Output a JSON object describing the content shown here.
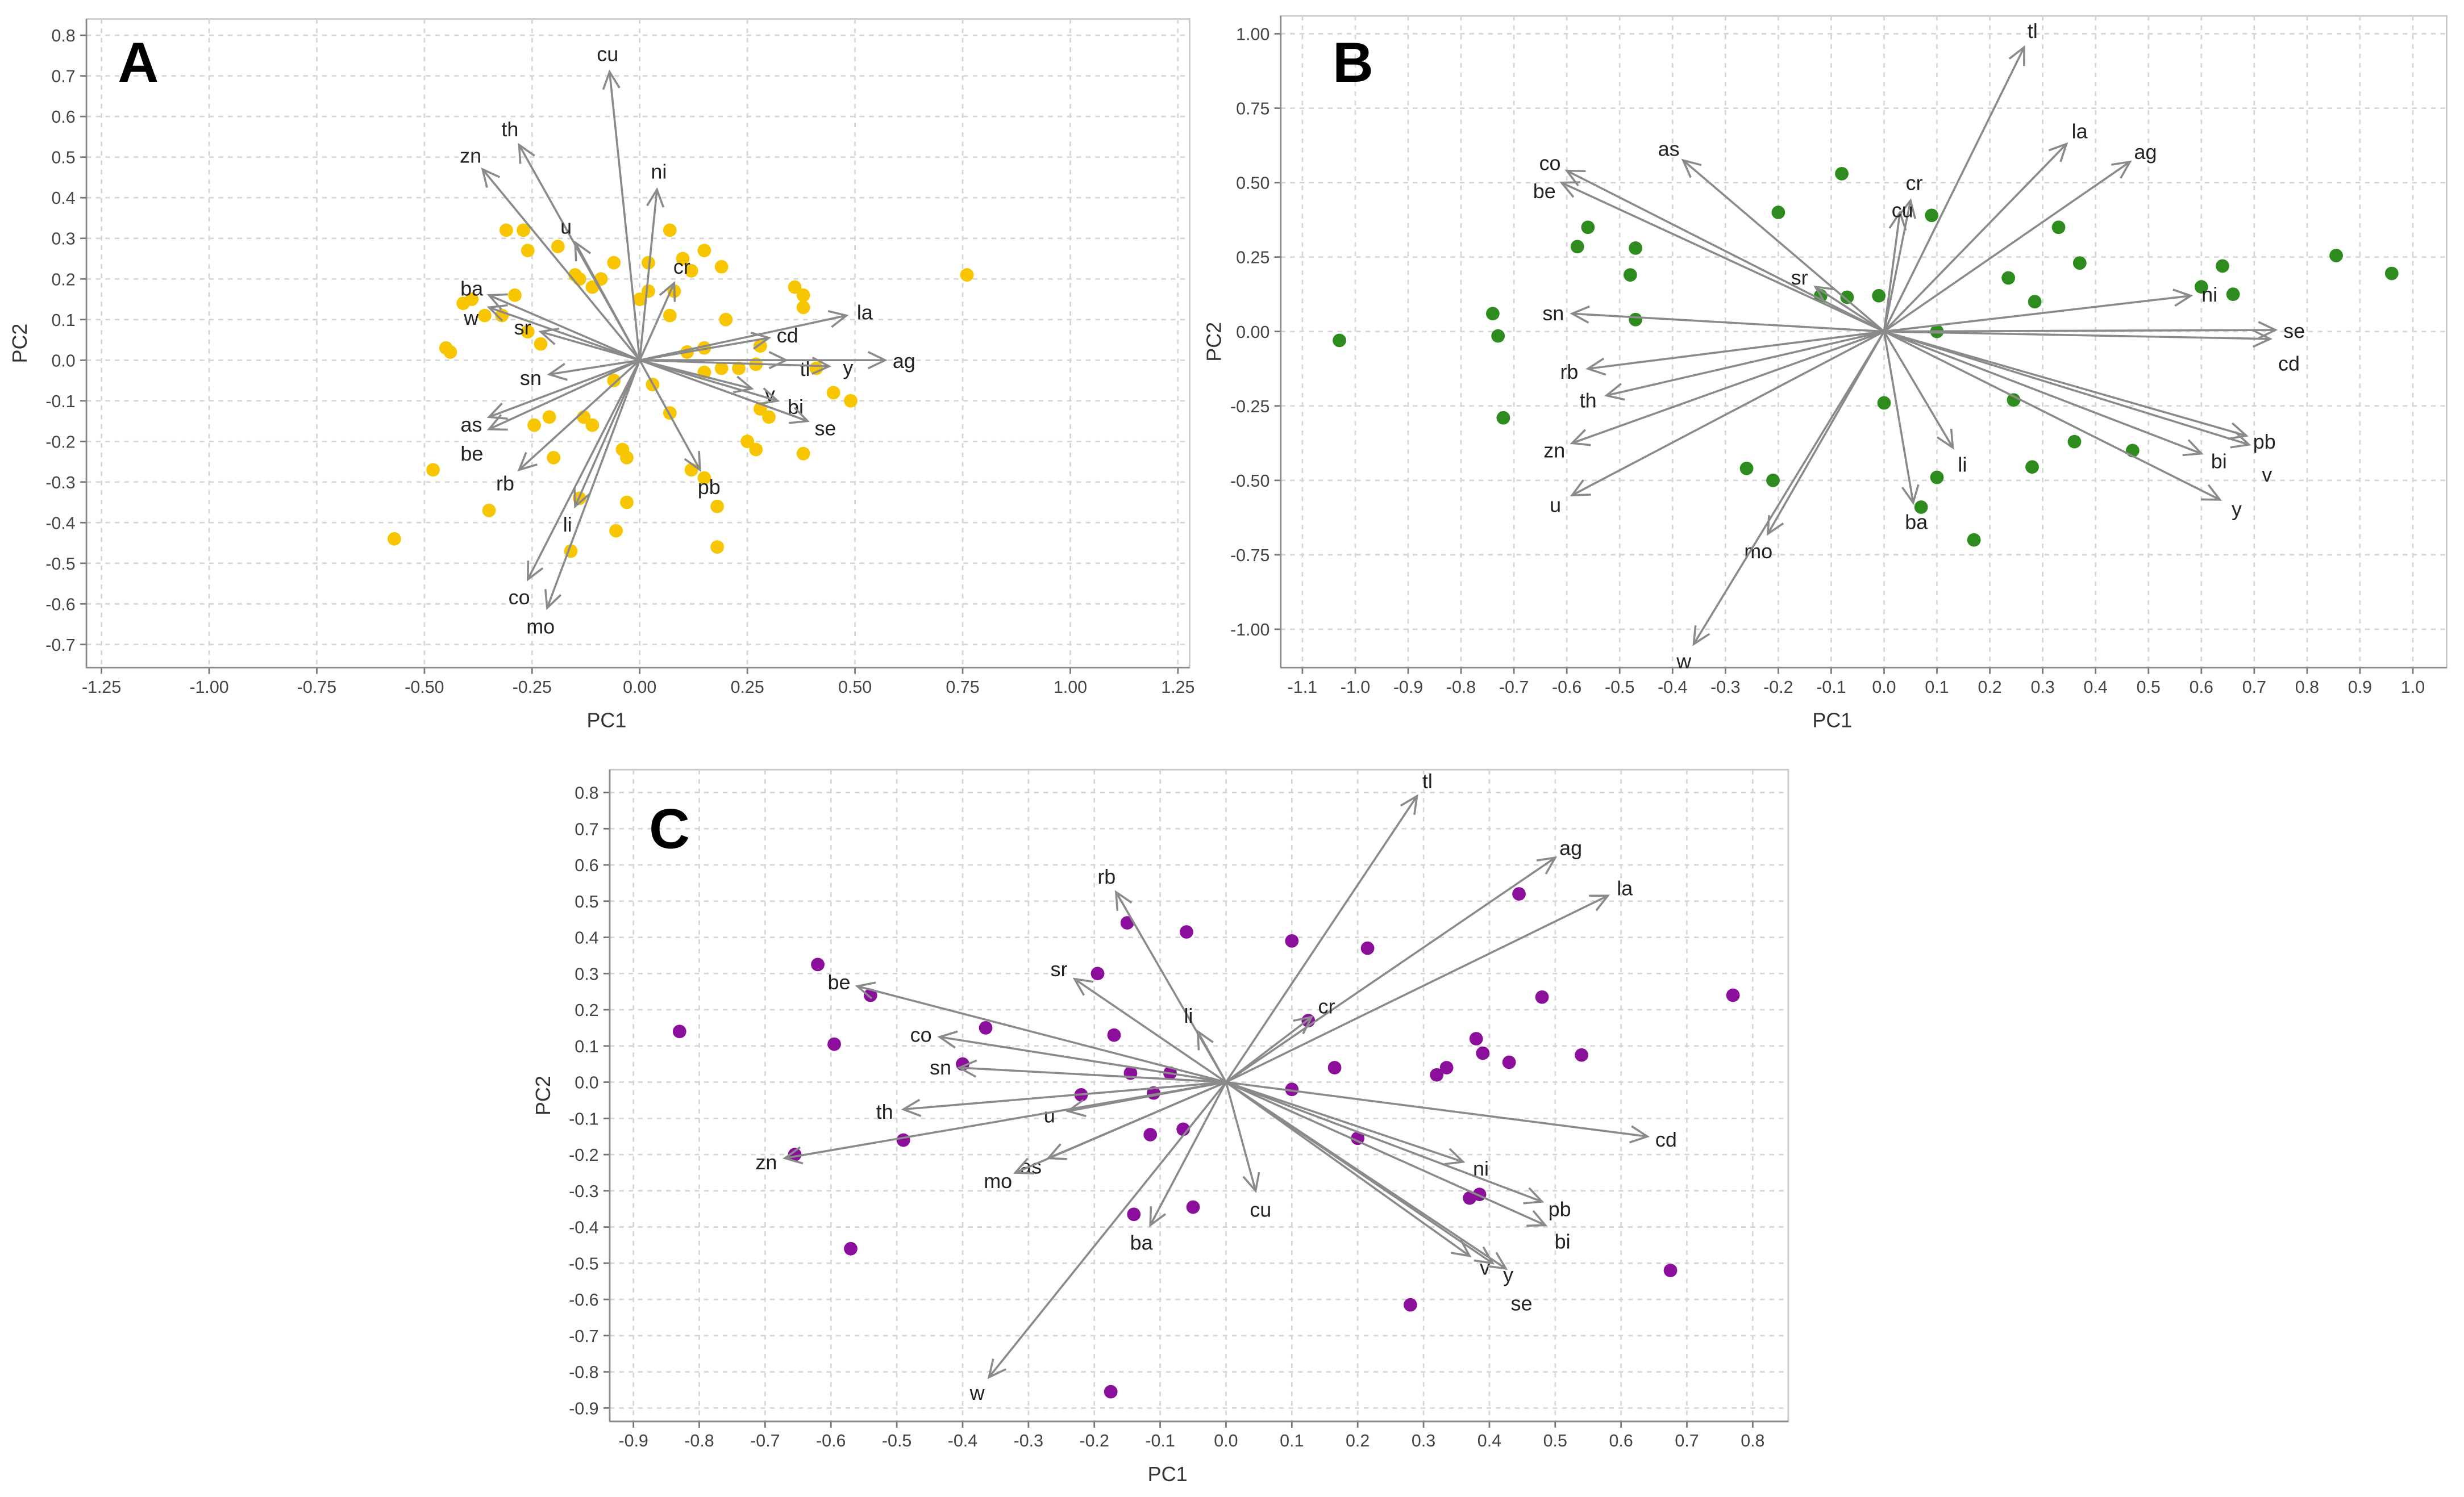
{
  "chart_data": [
    {
      "type": "scatter",
      "subtype": "pca-biplot",
      "panel": "A",
      "xlabel": "PC1",
      "ylabel": "PC2",
      "xlim": [
        -1.285,
        1.277
      ],
      "ylim": [
        -0.757,
        0.84
      ],
      "xticks": [
        -1.25,
        -1.0,
        -0.75,
        -0.5,
        -0.25,
        0,
        0.25,
        0.5,
        0.75,
        1.0,
        1.25
      ],
      "xtick_labels": [
        "-1.25",
        "-1.00",
        "-0.75",
        "-0.50",
        "-0.25",
        "0.00",
        "0.25",
        "0.50",
        "0.75",
        "1.00",
        "1.25"
      ],
      "yticks": [
        -0.7,
        -0.6,
        -0.5,
        -0.4,
        -0.3,
        -0.2,
        -0.1,
        0,
        0.1,
        0.2,
        0.3,
        0.4,
        0.5,
        0.6,
        0.7,
        0.8
      ],
      "ytick_labels": [
        "-0.7",
        "-0.6",
        "-0.5",
        "-0.4",
        "-0.3",
        "-0.2",
        "-0.1",
        "0.0",
        "0.1",
        "0.2",
        "0.3",
        "0.4",
        "0.5",
        "0.6",
        "0.7",
        "0.8"
      ],
      "grid": true,
      "point_color": "#f7c600",
      "loadings": [
        [
          "cu",
          -0.07,
          0.71
        ],
        [
          "th",
          -0.28,
          0.53
        ],
        [
          "zn",
          -0.365,
          0.47
        ],
        [
          "ni",
          0.04,
          0.42
        ],
        [
          "u",
          -0.15,
          0.29
        ],
        [
          "cr",
          0.08,
          0.19
        ],
        [
          "ba",
          -0.35,
          0.16
        ],
        [
          "w",
          -0.35,
          0.13
        ],
        [
          "sr",
          -0.23,
          0.07
        ],
        [
          "la",
          0.48,
          0.11
        ],
        [
          "cd",
          0.3,
          0.055
        ],
        [
          "tl",
          0.34,
          0.0
        ],
        [
          "y",
          0.44,
          -0.015
        ],
        [
          "ag",
          0.57,
          0.0
        ],
        [
          "sn",
          -0.21,
          -0.035
        ],
        [
          "v",
          0.26,
          -0.07
        ],
        [
          "bi",
          0.32,
          -0.1
        ],
        [
          "se",
          0.39,
          -0.15
        ],
        [
          "as",
          -0.35,
          -0.14
        ],
        [
          "be",
          -0.35,
          -0.17
        ],
        [
          "rb",
          -0.28,
          -0.27
        ],
        [
          "pb",
          0.14,
          -0.27
        ],
        [
          "li",
          -0.15,
          -0.36
        ],
        [
          "co",
          -0.26,
          -0.54
        ],
        [
          "mo",
          -0.215,
          -0.61
        ]
      ],
      "scores": [
        [
          0.76,
          0.21
        ],
        [
          -0.57,
          -0.44
        ],
        [
          -0.48,
          -0.27
        ],
        [
          -0.45,
          0.03
        ],
        [
          -0.44,
          0.02
        ],
        [
          -0.35,
          -0.37
        ],
        [
          -0.31,
          0.32
        ],
        [
          -0.27,
          0.32
        ],
        [
          -0.26,
          0.27
        ],
        [
          -0.29,
          0.16
        ],
        [
          -0.32,
          0.11
        ],
        [
          -0.26,
          0.07
        ],
        [
          -0.19,
          0.28
        ],
        [
          -0.15,
          0.21
        ],
        [
          -0.14,
          0.2
        ],
        [
          -0.11,
          0.18
        ],
        [
          -0.09,
          0.2
        ],
        [
          -0.06,
          0.24
        ],
        [
          0.0,
          0.15
        ],
        [
          0.02,
          0.24
        ],
        [
          0.07,
          0.32
        ],
        [
          0.1,
          0.25
        ],
        [
          0.12,
          0.22
        ],
        [
          0.15,
          0.27
        ],
        [
          0.19,
          0.23
        ],
        [
          0.2,
          0.1
        ],
        [
          0.08,
          0.17
        ],
        [
          0.07,
          0.11
        ],
        [
          0.02,
          0.17
        ],
        [
          0.11,
          0.02
        ],
        [
          0.15,
          -0.03
        ],
        [
          0.15,
          0.03
        ],
        [
          0.19,
          -0.02
        ],
        [
          0.23,
          -0.02
        ],
        [
          0.27,
          -0.01
        ],
        [
          0.28,
          0.035
        ],
        [
          0.36,
          0.18
        ],
        [
          0.38,
          0.16
        ],
        [
          0.38,
          0.13
        ],
        [
          0.41,
          -0.02
        ],
        [
          0.45,
          -0.08
        ],
        [
          0.49,
          -0.1
        ],
        [
          0.38,
          -0.23
        ],
        [
          0.28,
          -0.12
        ],
        [
          0.3,
          -0.14
        ],
        [
          0.25,
          -0.2
        ],
        [
          0.27,
          -0.22
        ],
        [
          0.12,
          -0.27
        ],
        [
          0.15,
          -0.29
        ],
        [
          0.18,
          -0.36
        ],
        [
          0.18,
          -0.46
        ],
        [
          0.07,
          -0.13
        ],
        [
          0.03,
          -0.06
        ],
        [
          -0.06,
          -0.05
        ],
        [
          -0.04,
          -0.22
        ],
        [
          -0.03,
          -0.24
        ],
        [
          -0.03,
          -0.35
        ],
        [
          -0.055,
          -0.42
        ],
        [
          -0.16,
          -0.47
        ],
        [
          -0.14,
          -0.34
        ],
        [
          -0.13,
          -0.14
        ],
        [
          -0.11,
          -0.16
        ],
        [
          -0.21,
          -0.14
        ],
        [
          -0.2,
          -0.24
        ],
        [
          -0.245,
          -0.16
        ],
        [
          -0.36,
          0.11
        ],
        [
          -0.41,
          0.14
        ],
        [
          -0.39,
          0.15
        ],
        [
          -0.23,
          0.04
        ]
      ]
    },
    {
      "type": "scatter",
      "subtype": "pca-biplot",
      "panel": "B",
      "xlabel": "PC1",
      "ylabel": "PC2",
      "xlim": [
        -1.141,
        1.064
      ],
      "ylim": [
        -1.129,
        1.06
      ],
      "xticks": [
        -1.1,
        -1.0,
        -0.9,
        -0.8,
        -0.7,
        -0.6,
        -0.5,
        -0.4,
        -0.3,
        -0.2,
        -0.1,
        0,
        0.1,
        0.2,
        0.3,
        0.4,
        0.5,
        0.6,
        0.7,
        0.8,
        0.9,
        1.0
      ],
      "xtick_labels": [
        "-1.1",
        "-1.0",
        "-0.9",
        "-0.8",
        "-0.7",
        "-0.6",
        "-0.5",
        "-0.4",
        "-0.3",
        "-0.2",
        "-0.1",
        "0.0",
        "0.1",
        "0.2",
        "0.3",
        "0.4",
        "0.5",
        "0.6",
        "0.7",
        "0.8",
        "0.9",
        "1.0"
      ],
      "yticks": [
        -1.0,
        -0.75,
        -0.5,
        -0.25,
        0,
        0.25,
        0.5,
        0.75,
        1.0
      ],
      "ytick_labels": [
        "-1.00",
        "-0.75",
        "-0.50",
        "-0.25",
        "0.00",
        "0.25",
        "0.50",
        "0.75",
        "1.00"
      ],
      "grid": true,
      "point_color": "#2e8b1e",
      "loadings": [
        [
          "tl",
          0.265,
          0.955
        ],
        [
          "la",
          0.345,
          0.63
        ],
        [
          "ag",
          0.465,
          0.57
        ],
        [
          "co",
          -0.6,
          0.54
        ],
        [
          "be",
          -0.61,
          0.5
        ],
        [
          "as",
          -0.38,
          0.575
        ],
        [
          "cr",
          0.05,
          0.44
        ],
        [
          "cu",
          0.03,
          0.4
        ],
        [
          "sr",
          -0.13,
          0.15
        ],
        [
          "ni",
          0.58,
          0.12
        ],
        [
          "se",
          0.74,
          0.005
        ],
        [
          "cd",
          0.73,
          -0.025
        ],
        [
          "sn",
          -0.59,
          0.06
        ],
        [
          "rb",
          -0.56,
          -0.125
        ],
        [
          "th",
          -0.525,
          -0.215
        ],
        [
          "zn",
          -0.59,
          -0.375
        ],
        [
          "li",
          0.13,
          -0.39
        ],
        [
          "pb",
          0.685,
          -0.35
        ],
        [
          "v",
          0.69,
          -0.38
        ],
        [
          "bi",
          0.6,
          -0.41
        ],
        [
          "y",
          0.635,
          -0.565
        ],
        [
          "u",
          -0.59,
          -0.55
        ],
        [
          "ba",
          0.055,
          -0.575
        ],
        [
          "mo",
          -0.22,
          -0.68
        ],
        [
          "w",
          -0.36,
          -1.05
        ]
      ],
      "scores": [
        [
          -1.03,
          -0.03
        ],
        [
          -0.74,
          0.06
        ],
        [
          -0.73,
          -0.015
        ],
        [
          -0.72,
          -0.29
        ],
        [
          -0.58,
          0.285
        ],
        [
          -0.56,
          0.35
        ],
        [
          -0.47,
          0.28
        ],
        [
          -0.48,
          0.19
        ],
        [
          -0.47,
          0.04
        ],
        [
          -0.2,
          0.4
        ],
        [
          -0.08,
          0.53
        ],
        [
          -0.12,
          0.12
        ],
        [
          -0.07,
          0.115
        ],
        [
          -0.01,
          0.12
        ],
        [
          0.09,
          0.39
        ],
        [
          0.1,
          0.0
        ],
        [
          0.0,
          -0.24
        ],
        [
          -0.26,
          -0.46
        ],
        [
          -0.21,
          -0.5
        ],
        [
          0.07,
          -0.59
        ],
        [
          0.1,
          -0.49
        ],
        [
          0.17,
          -0.7
        ],
        [
          0.235,
          0.18
        ],
        [
          0.285,
          0.1
        ],
        [
          0.33,
          0.35
        ],
        [
          0.37,
          0.23
        ],
        [
          0.245,
          -0.23
        ],
        [
          0.28,
          -0.455
        ],
        [
          0.36,
          -0.37
        ],
        [
          0.47,
          -0.4
        ],
        [
          0.6,
          0.15
        ],
        [
          0.64,
          0.22
        ],
        [
          0.66,
          0.125
        ],
        [
          0.855,
          0.255
        ],
        [
          0.96,
          0.195
        ]
      ]
    },
    {
      "type": "scatter",
      "subtype": "pca-biplot",
      "panel": "C",
      "xlabel": "PC1",
      "ylabel": "PC2",
      "xlim": [
        -0.936,
        0.854
      ],
      "ylim": [
        -0.937,
        0.863
      ],
      "xticks": [
        -0.9,
        -0.8,
        -0.7,
        -0.6,
        -0.5,
        -0.4,
        -0.3,
        -0.2,
        -0.1,
        0,
        0.1,
        0.2,
        0.3,
        0.4,
        0.5,
        0.6,
        0.7,
        0.8
      ],
      "xtick_labels": [
        "-0.9",
        "-0.8",
        "-0.7",
        "-0.6",
        "-0.5",
        "-0.4",
        "-0.3",
        "-0.2",
        "-0.1",
        "0.0",
        "0.1",
        "0.2",
        "0.3",
        "0.4",
        "0.5",
        "0.6",
        "0.7",
        "0.8"
      ],
      "yticks": [
        -0.9,
        -0.8,
        -0.7,
        -0.6,
        -0.5,
        -0.4,
        -0.3,
        -0.2,
        -0.1,
        0,
        0.1,
        0.2,
        0.3,
        0.4,
        0.5,
        0.6,
        0.7,
        0.8
      ],
      "ytick_labels": [
        "-0.9",
        "-0.8",
        "-0.7",
        "-0.6",
        "-0.5",
        "-0.4",
        "-0.3",
        "-0.2",
        "-0.1",
        "0.0",
        "0.1",
        "0.2",
        "0.3",
        "0.4",
        "0.5",
        "0.6",
        "0.7",
        "0.8"
      ],
      "grid": true,
      "point_color": "#8b0f9a",
      "loadings": [
        [
          "tl",
          0.29,
          0.79
        ],
        [
          "ag",
          0.5,
          0.62
        ],
        [
          "la",
          0.58,
          0.515
        ],
        [
          "rb",
          -0.167,
          0.525
        ],
        [
          "sr",
          -0.23,
          0.285
        ],
        [
          "li",
          -0.043,
          0.14
        ],
        [
          "cr",
          0.13,
          0.18
        ],
        [
          "be",
          -0.56,
          0.265
        ],
        [
          "co",
          -0.435,
          0.125
        ],
        [
          "sn",
          -0.405,
          0.04
        ],
        [
          "th",
          -0.49,
          -0.075
        ],
        [
          "u",
          -0.24,
          -0.08
        ],
        [
          "cd",
          0.64,
          -0.15
        ],
        [
          "ni",
          0.36,
          -0.22
        ],
        [
          "as",
          -0.27,
          -0.21
        ],
        [
          "mo",
          -0.32,
          -0.25
        ],
        [
          "zn",
          -0.67,
          -0.21
        ],
        [
          "pb",
          0.48,
          -0.33
        ],
        [
          "bi",
          0.485,
          -0.395
        ],
        [
          "cu",
          0.045,
          -0.3
        ],
        [
          "ba",
          -0.115,
          -0.395
        ],
        [
          "v",
          0.37,
          -0.48
        ],
        [
          "y",
          0.405,
          -0.5
        ],
        [
          "se",
          0.425,
          -0.515
        ],
        [
          "w",
          -0.36,
          -0.815
        ]
      ],
      "scores": [
        [
          -0.83,
          0.14
        ],
        [
          -0.62,
          0.325
        ],
        [
          -0.54,
          0.24
        ],
        [
          -0.595,
          0.105
        ],
        [
          -0.57,
          -0.46
        ],
        [
          -0.49,
          -0.16
        ],
        [
          -0.655,
          -0.2
        ],
        [
          -0.4,
          0.05
        ],
        [
          -0.365,
          0.15
        ],
        [
          -0.22,
          -0.035
        ],
        [
          -0.195,
          0.3
        ],
        [
          -0.15,
          0.44
        ],
        [
          -0.17,
          0.13
        ],
        [
          -0.145,
          0.025
        ],
        [
          -0.11,
          -0.03
        ],
        [
          -0.085,
          0.025
        ],
        [
          -0.115,
          -0.145
        ],
        [
          -0.065,
          -0.13
        ],
        [
          -0.06,
          0.415
        ],
        [
          -0.05,
          -0.345
        ],
        [
          -0.14,
          -0.365
        ],
        [
          -0.175,
          -0.855
        ],
        [
          0.1,
          0.39
        ],
        [
          0.1,
          -0.02
        ],
        [
          0.125,
          0.17
        ],
        [
          0.165,
          0.04
        ],
        [
          0.215,
          0.37
        ],
        [
          0.2,
          -0.155
        ],
        [
          0.28,
          -0.615
        ],
        [
          0.32,
          0.02
        ],
        [
          0.335,
          0.04
        ],
        [
          0.38,
          0.12
        ],
        [
          0.39,
          0.08
        ],
        [
          0.43,
          0.055
        ],
        [
          0.445,
          0.52
        ],
        [
          0.48,
          0.235
        ],
        [
          0.54,
          0.075
        ],
        [
          0.37,
          -0.32
        ],
        [
          0.385,
          -0.31
        ],
        [
          0.675,
          -0.52
        ],
        [
          0.77,
          0.24
        ]
      ]
    }
  ]
}
